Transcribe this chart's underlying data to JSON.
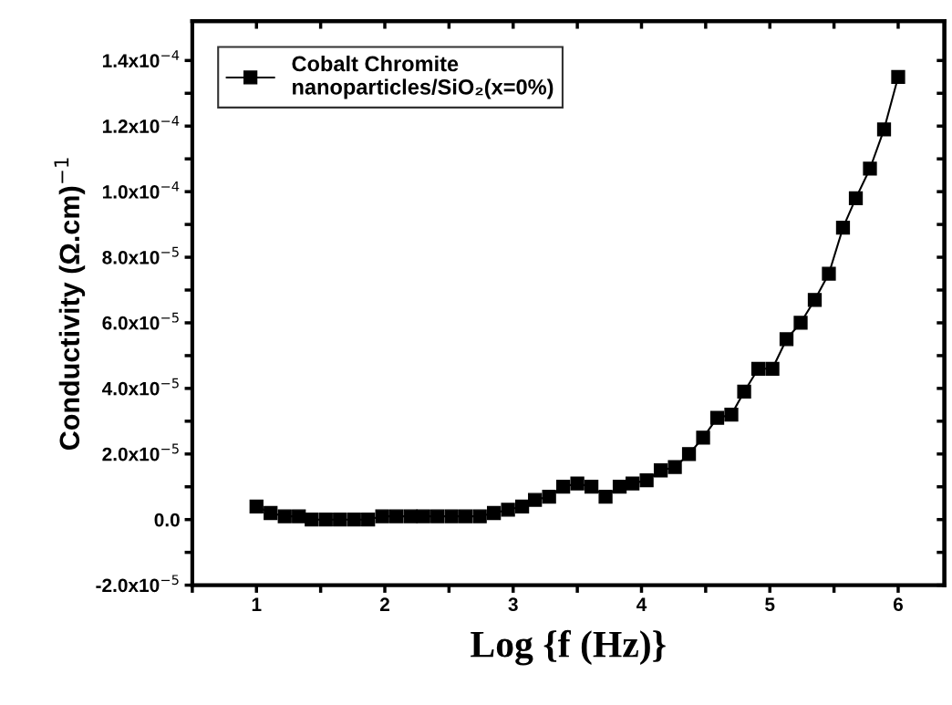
{
  "chart_data": {
    "type": "line",
    "xlabel": "Log {f (Hz)}",
    "ylabel": "Conductivity (Ω.cm)$^{−1}$",
    "x": [
      1.0,
      1.11,
      1.22,
      1.33,
      1.43,
      1.54,
      1.65,
      1.76,
      1.87,
      1.98,
      2.09,
      2.2,
      2.3,
      2.41,
      2.52,
      2.63,
      2.74,
      2.85,
      2.96,
      3.07,
      3.17,
      3.28,
      3.39,
      3.5,
      3.61,
      3.72,
      3.83,
      3.93,
      4.04,
      4.15,
      4.26,
      4.37,
      4.48,
      4.59,
      4.7,
      4.8,
      4.91,
      5.02,
      5.13,
      5.24,
      5.35,
      5.46,
      5.57,
      5.67,
      5.78,
      5.89,
      6.0
    ],
    "series": [
      {
        "name": "Cobalt Chromite\nnanoparticles/SiO₂(x=0%)",
        "color": "#000000",
        "values": [
          4e-06,
          2e-06,
          1e-06,
          1e-06,
          0.0,
          0.0,
          0.0,
          0.0,
          0.0,
          1e-06,
          1e-06,
          1e-06,
          1e-06,
          1e-06,
          1e-06,
          1e-06,
          1e-06,
          2e-06,
          3e-06,
          4e-06,
          6e-06,
          7e-06,
          1e-05,
          1.1e-05,
          1e-05,
          7e-06,
          1e-05,
          1.1e-05,
          1.2e-05,
          1.5e-05,
          1.6e-05,
          2e-05,
          2.5e-05,
          3.1e-05,
          3.2e-05,
          3.9e-05,
          4.6e-05,
          4.6e-05,
          5.5e-05,
          6e-05,
          6.7e-05,
          7.5e-05,
          8.9e-05,
          9.8e-05,
          0.000107,
          0.000119,
          0.000135
        ]
      }
    ],
    "marker": "square",
    "line_style": "solid",
    "legend": "top left",
    "grid": false,
    "xlim": [
      0.5,
      6.36
    ],
    "ylim": [
      -2e-05,
      0.000152
    ],
    "xticks": [
      {
        "value": 0.5,
        "label": null
      },
      1,
      {
        "value": 1.5,
        "label": null
      },
      2,
      {
        "value": 2.5,
        "label": null
      },
      3,
      {
        "value": 3.5,
        "label": null
      },
      4,
      {
        "value": 4.5,
        "label": null
      },
      5,
      {
        "value": 5.5,
        "label": null
      },
      6
    ],
    "yticks": [
      {
        "value": -2e-05,
        "label": "-2.0x10$^{−5}$"
      },
      {
        "value": -1e-05,
        "label": null
      },
      {
        "value": 0,
        "label": "0.0"
      },
      {
        "value": 1e-05,
        "label": null
      },
      {
        "value": 2e-05,
        "label": "2.0x10$^{−5}$"
      },
      {
        "value": 3e-05,
        "label": null
      },
      {
        "value": 4e-05,
        "label": "4.0x10$^{−5}$"
      },
      {
        "value": 5e-05,
        "label": null
      },
      {
        "value": 6e-05,
        "label": "6.0x10$^{−5}$"
      },
      {
        "value": 7e-05,
        "label": null
      },
      {
        "value": 8e-05,
        "label": "8.0x10$^{−5}$"
      },
      {
        "value": 9e-05,
        "label": null
      },
      {
        "value": 0.0001,
        "label": "1.0x10$^{−4}$"
      },
      {
        "value": 0.00011,
        "label": null
      },
      {
        "value": 0.00012,
        "label": "1.2x10$^{−4}$"
      },
      {
        "value": 0.00013,
        "label": null
      },
      {
        "value": 0.00014,
        "label": "1.4x10$^{−4}$"
      }
    ]
  }
}
